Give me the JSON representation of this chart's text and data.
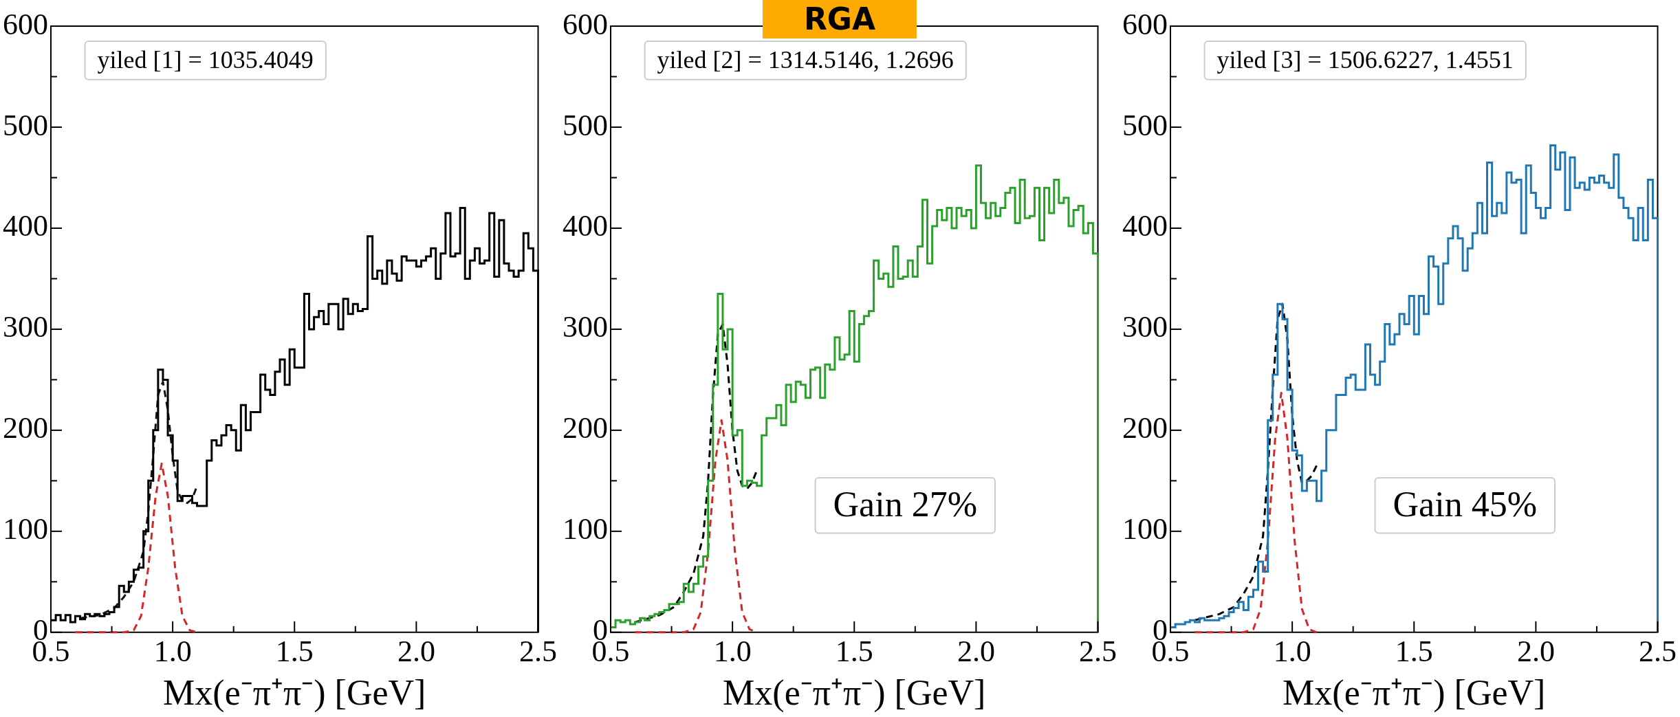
{
  "chart_data": [
    {
      "type": "histogram",
      "xlabel": "Mx(e⁻π⁺π⁻) [GeV]",
      "marker": "none",
      "annotations": [
        "yiled [1] = 1035.4049"
      ],
      "xlim": [
        0.5,
        2.5
      ],
      "xticks": [
        {
          "value": 0.5,
          "label": "0.5"
        },
        {
          "value": 0.75,
          "label": null
        },
        {
          "value": 1,
          "label": "1.0"
        },
        {
          "value": 1.25,
          "label": null
        },
        {
          "value": 1.5,
          "label": "1.5"
        },
        {
          "value": 1.75,
          "label": null
        },
        {
          "value": 2,
          "label": "2.0"
        },
        {
          "value": 2.25,
          "label": null
        },
        {
          "value": 2.5,
          "label": "2.5"
        }
      ],
      "ylim": [
        0,
        600
      ],
      "yticks": [
        0,
        {
          "value": 50,
          "label": null
        },
        100,
        {
          "value": 150,
          "label": null
        },
        200,
        {
          "value": 250,
          "label": null
        },
        300,
        {
          "value": 350,
          "label": null
        },
        400,
        {
          "value": 450,
          "label": null
        },
        500,
        {
          "value": 550,
          "label": null
        },
        600
      ],
      "bins": [
        0.5,
        0.52,
        0.54,
        0.56,
        0.58,
        0.6,
        0.62,
        0.64,
        0.66,
        0.68,
        0.7,
        0.72,
        0.74,
        0.76,
        0.78,
        0.8,
        0.82,
        0.84,
        0.86,
        0.88,
        0.9,
        0.92,
        0.94,
        0.96,
        0.98,
        1.0,
        1.02,
        1.04,
        1.06,
        1.08,
        1.1,
        1.12,
        1.14,
        1.16,
        1.18,
        1.2,
        1.22,
        1.24,
        1.26,
        1.28,
        1.3,
        1.32,
        1.34,
        1.36,
        1.38,
        1.4,
        1.42,
        1.44,
        1.46,
        1.48,
        1.5,
        1.52,
        1.54,
        1.56,
        1.58,
        1.6,
        1.62,
        1.64,
        1.66,
        1.68,
        1.7,
        1.72,
        1.74,
        1.76,
        1.78,
        1.8,
        1.82,
        1.84,
        1.86,
        1.88,
        1.9,
        1.92,
        1.94,
        1.96,
        1.98,
        2.0,
        2.02,
        2.04,
        2.06,
        2.08,
        2.1,
        2.12,
        2.14,
        2.16,
        2.18,
        2.2,
        2.22,
        2.24,
        2.26,
        2.28,
        2.3,
        2.32,
        2.34,
        2.36,
        2.38,
        2.4,
        2.42,
        2.44,
        2.46,
        2.48,
        2.5
      ],
      "series": [
        {
          "type": "histogram",
          "color": "#000000",
          "values": [
            12,
            17,
            12,
            17,
            10,
            16,
            13,
            18,
            16,
            18,
            16,
            18,
            20,
            25,
            46,
            40,
            50,
            62,
            64,
            100,
            150,
            200,
            260,
            250,
            195,
            170,
            130,
            135,
            135,
            128,
            125,
            125,
            170,
            190,
            185,
            195,
            205,
            200,
            180,
            225,
            200,
            218,
            218,
            255,
            240,
            235,
            258,
            270,
            245,
            280,
            262,
            262,
            335,
            300,
            312,
            318,
            305,
            325,
            325,
            300,
            330,
            315,
            325,
            318,
            320,
            392,
            350,
            358,
            345,
            368,
            355,
            348,
            372,
            368,
            368,
            362,
            368,
            372,
            380,
            350,
            375,
            415,
            372,
            375,
            420,
            350,
            368,
            380,
            365,
            368,
            415,
            352,
            408,
            365,
            358,
            352,
            358,
            395,
            380,
            358
          ]
        },
        {
          "type": "line",
          "color": "#141414",
          "line_style": "dashed",
          "x": [
            0.62,
            0.7,
            0.76,
            0.8,
            0.84,
            0.88,
            0.9,
            0.92,
            0.94,
            0.96,
            0.98,
            1.0,
            1.02,
            1.04,
            1.06,
            1.08,
            1.1
          ],
          "values": [
            14,
            17,
            24,
            35,
            50,
            80,
            120,
            175,
            235,
            248,
            220,
            175,
            140,
            130,
            128,
            132,
            145
          ]
        },
        {
          "type": "line",
          "color": "#d62728",
          "line_style": "dashed",
          "x": [
            0.6,
            0.8,
            0.84,
            0.87,
            0.9,
            0.93,
            0.955,
            0.98,
            1.01,
            1.04,
            1.07,
            1.1
          ],
          "values": [
            0,
            0,
            2,
            16,
            64,
            135,
            167,
            135,
            64,
            16,
            2,
            0
          ]
        }
      ]
    },
    {
      "type": "histogram",
      "title": "RGA",
      "xlabel": "Mx(e⁻π⁺π⁻) [GeV]",
      "marker": "none",
      "annotations": [
        "yiled [2] = 1314.5146, 1.2696",
        "Gain 27%"
      ],
      "xlim": [
        0.5,
        2.5
      ],
      "xticks": [
        {
          "value": 0.5,
          "label": "0.5"
        },
        {
          "value": 0.75,
          "label": null
        },
        {
          "value": 1,
          "label": "1.0"
        },
        {
          "value": 1.25,
          "label": null
        },
        {
          "value": 1.5,
          "label": "1.5"
        },
        {
          "value": 1.75,
          "label": null
        },
        {
          "value": 2,
          "label": "2.0"
        },
        {
          "value": 2.25,
          "label": null
        },
        {
          "value": 2.5,
          "label": "2.5"
        }
      ],
      "ylim": [
        0,
        600
      ],
      "yticks": [
        0,
        {
          "value": 50,
          "label": null
        },
        100,
        {
          "value": 150,
          "label": null
        },
        200,
        {
          "value": 250,
          "label": null
        },
        300,
        {
          "value": 350,
          "label": null
        },
        400,
        {
          "value": 450,
          "label": null
        },
        500,
        {
          "value": 550,
          "label": null
        },
        600
      ],
      "bins": [
        0.5,
        0.52,
        0.54,
        0.56,
        0.58,
        0.6,
        0.62,
        0.64,
        0.66,
        0.68,
        0.7,
        0.72,
        0.74,
        0.76,
        0.78,
        0.8,
        0.82,
        0.84,
        0.86,
        0.88,
        0.9,
        0.92,
        0.94,
        0.96,
        0.98,
        1.0,
        1.02,
        1.04,
        1.06,
        1.08,
        1.1,
        1.12,
        1.14,
        1.16,
        1.18,
        1.2,
        1.22,
        1.24,
        1.26,
        1.28,
        1.3,
        1.32,
        1.34,
        1.36,
        1.38,
        1.4,
        1.42,
        1.44,
        1.46,
        1.48,
        1.5,
        1.52,
        1.54,
        1.56,
        1.58,
        1.6,
        1.62,
        1.64,
        1.66,
        1.68,
        1.7,
        1.72,
        1.74,
        1.76,
        1.78,
        1.8,
        1.82,
        1.84,
        1.86,
        1.88,
        1.9,
        1.92,
        1.94,
        1.96,
        1.98,
        2.0,
        2.02,
        2.04,
        2.06,
        2.08,
        2.1,
        2.12,
        2.14,
        2.16,
        2.18,
        2.2,
        2.22,
        2.24,
        2.26,
        2.28,
        2.3,
        2.32,
        2.34,
        2.36,
        2.38,
        2.4,
        2.42,
        2.44,
        2.46,
        2.48,
        2.5
      ],
      "series": [
        {
          "type": "histogram",
          "color": "#2ca02c",
          "values": [
            5,
            12,
            10,
            12,
            8,
            10,
            14,
            12,
            16,
            18,
            20,
            22,
            28,
            28,
            30,
            48,
            40,
            48,
            65,
            75,
            150,
            245,
            335,
            280,
            300,
            195,
            200,
            145,
            150,
            148,
            145,
            195,
            212,
            212,
            225,
            205,
            245,
            228,
            248,
            245,
            232,
            260,
            262,
            232,
            265,
            260,
            292,
            270,
            275,
            318,
            268,
            305,
            313,
            318,
            368,
            350,
            355,
            342,
            382,
            350,
            352,
            368,
            352,
            382,
            428,
            365,
            402,
            418,
            408,
            420,
            400,
            420,
            412,
            418,
            400,
            462,
            425,
            410,
            425,
            412,
            420,
            435,
            440,
            405,
            448,
            410,
            412,
            440,
            388,
            440,
            415,
            448,
            425,
            430,
            402,
            418,
            422,
            395,
            405,
            375
          ]
        },
        {
          "type": "line",
          "color": "#000000",
          "line_style": "dashed",
          "x": [
            0.6,
            0.7,
            0.76,
            0.8,
            0.84,
            0.88,
            0.9,
            0.92,
            0.94,
            0.96,
            0.98,
            1.0,
            1.02,
            1.04,
            1.06,
            1.08,
            1.1
          ],
          "values": [
            10,
            17,
            25,
            40,
            58,
            95,
            150,
            235,
            295,
            305,
            265,
            200,
            160,
            145,
            142,
            148,
            160
          ]
        },
        {
          "type": "line",
          "color": "#d62728",
          "line_style": "dashed",
          "x": [
            0.6,
            0.8,
            0.84,
            0.87,
            0.9,
            0.93,
            0.955,
            0.98,
            1.01,
            1.04,
            1.07,
            1.1
          ],
          "values": [
            0,
            0,
            3,
            20,
            80,
            170,
            210,
            170,
            80,
            20,
            3,
            0
          ]
        }
      ]
    },
    {
      "type": "histogram",
      "xlabel": "Mx(e⁻π⁺π⁻) [GeV]",
      "marker": "none",
      "annotations": [
        "yiled [3] = 1506.6227, 1.4551",
        "Gain 45%"
      ],
      "xlim": [
        0.5,
        2.5
      ],
      "xticks": [
        {
          "value": 0.5,
          "label": "0.5"
        },
        {
          "value": 0.75,
          "label": null
        },
        {
          "value": 1,
          "label": "1.0"
        },
        {
          "value": 1.25,
          "label": null
        },
        {
          "value": 1.5,
          "label": "1.5"
        },
        {
          "value": 1.75,
          "label": null
        },
        {
          "value": 2,
          "label": "2.0"
        },
        {
          "value": 2.25,
          "label": null
        },
        {
          "value": 2.5,
          "label": "2.5"
        }
      ],
      "ylim": [
        0,
        600
      ],
      "yticks": [
        0,
        {
          "value": 50,
          "label": null
        },
        100,
        {
          "value": 150,
          "label": null
        },
        200,
        {
          "value": 250,
          "label": null
        },
        300,
        {
          "value": 350,
          "label": null
        },
        400,
        {
          "value": 450,
          "label": null
        },
        500,
        {
          "value": 550,
          "label": null
        },
        600
      ],
      "bins": [
        0.5,
        0.52,
        0.54,
        0.56,
        0.58,
        0.6,
        0.62,
        0.64,
        0.66,
        0.68,
        0.7,
        0.72,
        0.74,
        0.76,
        0.78,
        0.8,
        0.82,
        0.84,
        0.86,
        0.88,
        0.9,
        0.92,
        0.94,
        0.96,
        0.98,
        1.0,
        1.02,
        1.04,
        1.06,
        1.08,
        1.1,
        1.12,
        1.14,
        1.16,
        1.18,
        1.2,
        1.22,
        1.24,
        1.26,
        1.28,
        1.3,
        1.32,
        1.34,
        1.36,
        1.38,
        1.4,
        1.42,
        1.44,
        1.46,
        1.48,
        1.5,
        1.52,
        1.54,
        1.56,
        1.58,
        1.6,
        1.62,
        1.64,
        1.66,
        1.68,
        1.7,
        1.72,
        1.74,
        1.76,
        1.78,
        1.8,
        1.82,
        1.84,
        1.86,
        1.88,
        1.9,
        1.92,
        1.94,
        1.96,
        1.98,
        2.0,
        2.02,
        2.04,
        2.06,
        2.08,
        2.1,
        2.12,
        2.14,
        2.16,
        2.18,
        2.2,
        2.22,
        2.24,
        2.26,
        2.28,
        2.3,
        2.32,
        2.34,
        2.36,
        2.38,
        2.4,
        2.42,
        2.44,
        2.46,
        2.48,
        2.5
      ],
      "series": [
        {
          "type": "histogram",
          "color": "#1f77b4",
          "values": [
            5,
            8,
            8,
            10,
            12,
            10,
            14,
            12,
            12,
            12,
            14,
            16,
            20,
            24,
            30,
            22,
            35,
            42,
            70,
            60,
            210,
            255,
            325,
            310,
            240,
            180,
            175,
            140,
            150,
            150,
            130,
            160,
            200,
            200,
            235,
            235,
            252,
            255,
            240,
            240,
            285,
            255,
            245,
            268,
            305,
            285,
            295,
            315,
            305,
            333,
            295,
            333,
            315,
            372,
            362,
            325,
            365,
            390,
            402,
            390,
            358,
            380,
            395,
            425,
            395,
            465,
            412,
            425,
            415,
            455,
            445,
            448,
            395,
            462,
            435,
            420,
            410,
            420,
            482,
            458,
            475,
            418,
            470,
            440,
            445,
            438,
            450,
            445,
            452,
            445,
            440,
            473,
            430,
            420,
            410,
            388,
            420,
            388,
            448,
            410
          ]
        },
        {
          "type": "line",
          "color": "#000000",
          "line_style": "dashed",
          "x": [
            0.6,
            0.7,
            0.76,
            0.8,
            0.84,
            0.88,
            0.9,
            0.92,
            0.94,
            0.96,
            0.98,
            1.0,
            1.02,
            1.04,
            1.06,
            1.08,
            1.1
          ],
          "values": [
            12,
            18,
            25,
            38,
            55,
            95,
            160,
            240,
            310,
            325,
            290,
            215,
            170,
            148,
            150,
            155,
            165
          ]
        },
        {
          "type": "line",
          "color": "#d62728",
          "line_style": "dashed",
          "x": [
            0.6,
            0.8,
            0.84,
            0.87,
            0.9,
            0.93,
            0.955,
            0.98,
            1.01,
            1.04,
            1.07,
            1.1
          ],
          "values": [
            0,
            0,
            3,
            23,
            90,
            192,
            237,
            192,
            90,
            23,
            3,
            0
          ]
        }
      ]
    }
  ]
}
